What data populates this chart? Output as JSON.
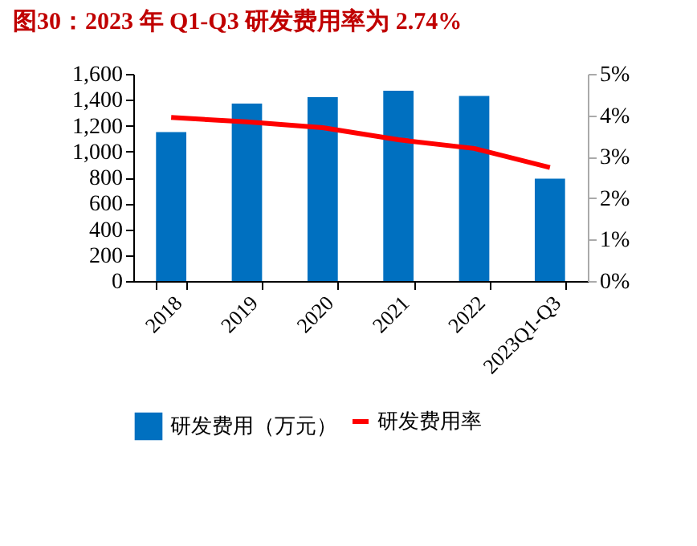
{
  "chart_data": {
    "type": "bar",
    "title": "图30：2023 年 Q1-Q3 研发费用率为 2.74%",
    "categories": [
      "2018",
      "2019",
      "2020",
      "2021",
      "2022",
      "2023Q1-Q3"
    ],
    "series": [
      {
        "name": "研发费用（万元）",
        "color": "#0070c0",
        "values": [
          1150,
          1370,
          1420,
          1470,
          1430,
          790
        ]
      },
      {
        "name": "研发费用率",
        "type": "line",
        "axis": "y2",
        "color": "#ff0000",
        "values": [
          3.95,
          3.84,
          3.7,
          3.41,
          3.2,
          2.74
        ]
      }
    ],
    "ylim": [
      0,
      1600
    ],
    "yticks": [
      {
        "value": 0,
        "label": "0"
      },
      {
        "value": 200,
        "label": "200"
      },
      {
        "value": 400,
        "label": "400"
      },
      {
        "value": 600,
        "label": "600"
      },
      {
        "value": 800,
        "label": "800"
      },
      {
        "value": 1000,
        "label": "1,000"
      },
      {
        "value": 1200,
        "label": "1,200"
      },
      {
        "value": 1400,
        "label": "1,400"
      },
      {
        "value": 1600,
        "label": "1,600"
      }
    ],
    "y2lim": [
      0,
      5
    ],
    "y2ticks": [
      {
        "value": 0,
        "label": "0%"
      },
      {
        "value": 1,
        "label": "1%"
      },
      {
        "value": 2,
        "label": "2%"
      },
      {
        "value": 3,
        "label": "3%"
      },
      {
        "value": 4,
        "label": "4%"
      },
      {
        "value": 5,
        "label": "5%"
      }
    ],
    "grid": false,
    "legend": "bottom",
    "marker": "none",
    "line_style": "solid"
  }
}
